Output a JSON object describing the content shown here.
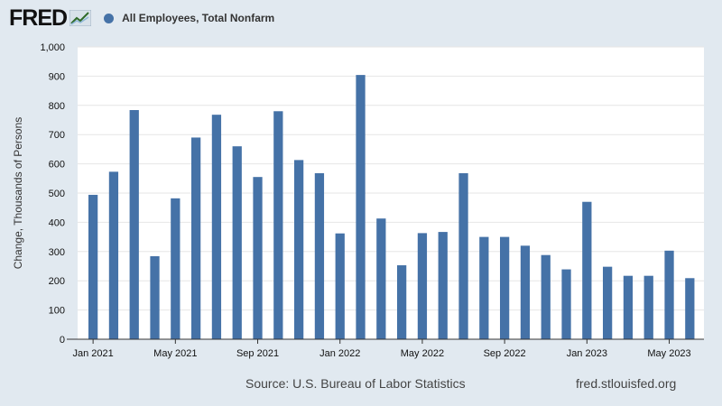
{
  "header": {
    "logo_text": "FRED",
    "legend_label": "All Employees, Total Nonfarm",
    "series_color": "#4572a7"
  },
  "footer": {
    "source": "Source: U.S. Bureau of Labor Statistics",
    "url": "fred.stlouisfed.org"
  },
  "chart_data": {
    "type": "bar",
    "ylabel": "Change, Thousands of Persons",
    "ylim": [
      0,
      1000
    ],
    "yticks": [
      0,
      100,
      200,
      300,
      400,
      500,
      600,
      700,
      800,
      900,
      1000
    ],
    "ytick_labels": [
      "0",
      "100",
      "200",
      "300",
      "400",
      "500",
      "600",
      "700",
      "800",
      "900",
      "1,000"
    ],
    "grid": true,
    "x_tick_labels": [
      "Jan 2021",
      "May 2021",
      "Sep 2021",
      "Jan 2022",
      "May 2022",
      "Sep 2022",
      "Jan 2023",
      "May 2023"
    ],
    "x_tick_every": 4,
    "categories": [
      "2021-01",
      "2021-02",
      "2021-03",
      "2021-04",
      "2021-05",
      "2021-06",
      "2021-07",
      "2021-08",
      "2021-09",
      "2021-10",
      "2021-11",
      "2021-12",
      "2022-01",
      "2022-02",
      "2022-03",
      "2022-04",
      "2022-05",
      "2022-06",
      "2022-07",
      "2022-08",
      "2022-09",
      "2022-10",
      "2022-11",
      "2022-12",
      "2023-01",
      "2023-02",
      "2023-03",
      "2023-04",
      "2023-05",
      "2023-06"
    ],
    "series": [
      {
        "name": "All Employees, Total Nonfarm",
        "values": [
          494,
          573,
          784,
          284,
          482,
          690,
          768,
          660,
          555,
          780,
          613,
          568,
          362,
          904,
          413,
          253,
          363,
          367,
          568,
          350,
          350,
          320,
          288,
          239,
          470,
          248,
          217,
          217,
          303,
          209
        ]
      }
    ]
  }
}
